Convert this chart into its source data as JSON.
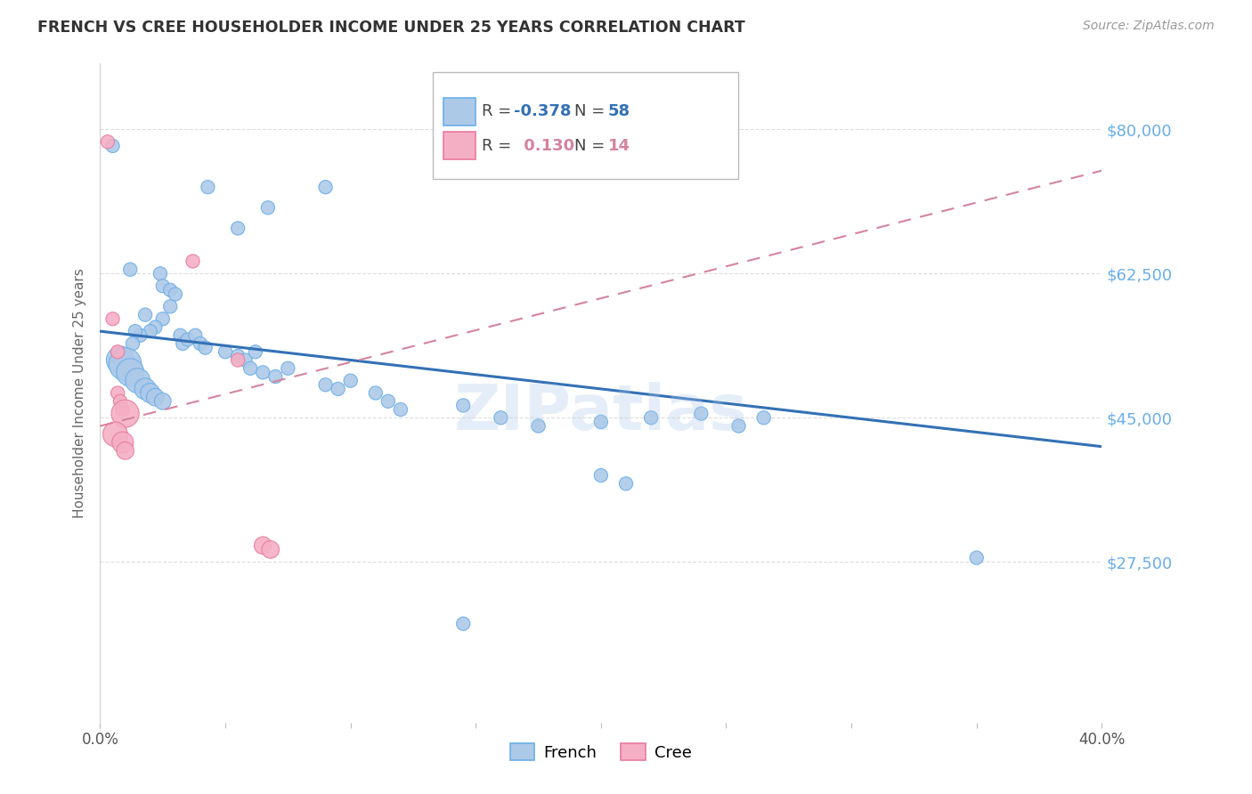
{
  "title": "FRENCH VS CREE HOUSEHOLDER INCOME UNDER 25 YEARS CORRELATION CHART",
  "source": "Source: ZipAtlas.com",
  "ylabel": "Householder Income Under 25 years",
  "xlim": [
    0.0,
    0.4
  ],
  "ylim": [
    8000,
    88000
  ],
  "yticks": [
    27500,
    45000,
    62500,
    80000
  ],
  "ytick_labels": [
    "$27,500",
    "$45,000",
    "$62,500",
    "$80,000"
  ],
  "xticks": [
    0.0,
    0.05,
    0.1,
    0.15,
    0.2,
    0.25,
    0.3,
    0.35,
    0.4
  ],
  "french_R": "-0.378",
  "french_N": "58",
  "cree_R": "0.130",
  "cree_N": "14",
  "french_color": "#adc9e8",
  "french_edge": "#6aaee8",
  "cree_color": "#f5afc5",
  "cree_edge": "#e87aa0",
  "trendline_french_color": "#3371b5",
  "trendline_cree_color": "#d4849e",
  "watermark": "ZIPatlas",
  "french_points": [
    [
      0.005,
      78000
    ],
    [
      0.043,
      73000
    ],
    [
      0.09,
      73000
    ],
    [
      0.067,
      70500
    ],
    [
      0.055,
      68000
    ],
    [
      0.012,
      63000
    ],
    [
      0.024,
      62500
    ],
    [
      0.025,
      61000
    ],
    [
      0.028,
      60500
    ],
    [
      0.03,
      60000
    ],
    [
      0.028,
      58500
    ],
    [
      0.025,
      57000
    ],
    [
      0.022,
      56000
    ],
    [
      0.018,
      57500
    ],
    [
      0.02,
      55500
    ],
    [
      0.016,
      55000
    ],
    [
      0.014,
      55500
    ],
    [
      0.013,
      54000
    ],
    [
      0.032,
      55000
    ],
    [
      0.033,
      54000
    ],
    [
      0.035,
      54500
    ],
    [
      0.038,
      55000
    ],
    [
      0.04,
      54000
    ],
    [
      0.042,
      53500
    ],
    [
      0.05,
      53000
    ],
    [
      0.055,
      52500
    ],
    [
      0.058,
      52000
    ],
    [
      0.062,
      53000
    ],
    [
      0.06,
      51000
    ],
    [
      0.065,
      50500
    ],
    [
      0.07,
      50000
    ],
    [
      0.075,
      51000
    ],
    [
      0.008,
      52000
    ],
    [
      0.01,
      51500
    ],
    [
      0.012,
      50500
    ],
    [
      0.015,
      49500
    ],
    [
      0.018,
      48500
    ],
    [
      0.02,
      48000
    ],
    [
      0.022,
      47500
    ],
    [
      0.025,
      47000
    ],
    [
      0.09,
      49000
    ],
    [
      0.095,
      48500
    ],
    [
      0.1,
      49500
    ],
    [
      0.11,
      48000
    ],
    [
      0.115,
      47000
    ],
    [
      0.12,
      46000
    ],
    [
      0.145,
      46500
    ],
    [
      0.16,
      45000
    ],
    [
      0.175,
      44000
    ],
    [
      0.2,
      44500
    ],
    [
      0.22,
      45000
    ],
    [
      0.24,
      45500
    ],
    [
      0.255,
      44000
    ],
    [
      0.265,
      45000
    ],
    [
      0.2,
      38000
    ],
    [
      0.21,
      37000
    ],
    [
      0.35,
      28000
    ],
    [
      0.145,
      20000
    ]
  ],
  "cree_points": [
    [
      0.003,
      78500
    ],
    [
      0.005,
      57000
    ],
    [
      0.007,
      53000
    ],
    [
      0.007,
      48000
    ],
    [
      0.008,
      47000
    ],
    [
      0.009,
      46000
    ],
    [
      0.01,
      45500
    ],
    [
      0.006,
      43000
    ],
    [
      0.009,
      42000
    ],
    [
      0.01,
      41000
    ],
    [
      0.037,
      64000
    ],
    [
      0.055,
      52000
    ],
    [
      0.065,
      29500
    ],
    [
      0.068,
      29000
    ]
  ],
  "french_trendline": [
    [
      0.0,
      55500
    ],
    [
      0.4,
      41500
    ]
  ],
  "cree_trendline": [
    [
      0.0,
      44000
    ],
    [
      0.4,
      75000
    ]
  ],
  "french_sizes": [
    120,
    120,
    120,
    120,
    120,
    120,
    120,
    120,
    120,
    120,
    120,
    120,
    120,
    120,
    120,
    120,
    120,
    120,
    120,
    120,
    120,
    120,
    120,
    120,
    120,
    120,
    120,
    120,
    120,
    120,
    120,
    120,
    500,
    700,
    500,
    400,
    300,
    250,
    200,
    180,
    120,
    120,
    120,
    120,
    120,
    120,
    120,
    120,
    120,
    120,
    120,
    120,
    120,
    120,
    120,
    120,
    120,
    120
  ],
  "cree_sizes": [
    120,
    120,
    120,
    120,
    120,
    120,
    500,
    400,
    300,
    200,
    120,
    120,
    200,
    200
  ]
}
